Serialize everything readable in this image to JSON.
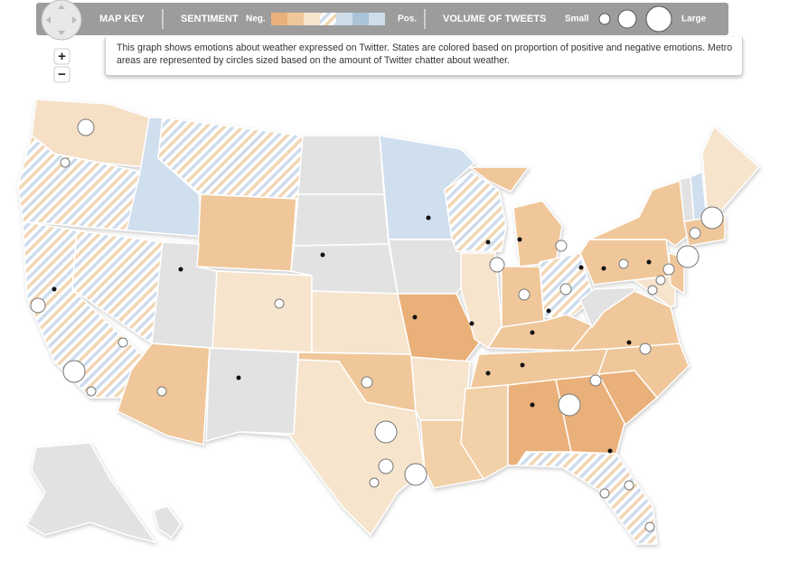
{
  "key_bar": {
    "title": "MAP KEY",
    "sentiment_label": "SENTIMENT",
    "negative": "Neg.",
    "positive": "Pos.",
    "volume_label": "VOLUME OF TWEETS",
    "small": "Small",
    "large": "Large"
  },
  "description": "This graph shows emotions about weather expressed on Twitter. States are colored based on proportion of positive and negative emotions. Metro areas are represented by circles sized based on the amount of Twitter chatter about weather.",
  "zoom": {
    "in": "+",
    "out": "−"
  }
}
